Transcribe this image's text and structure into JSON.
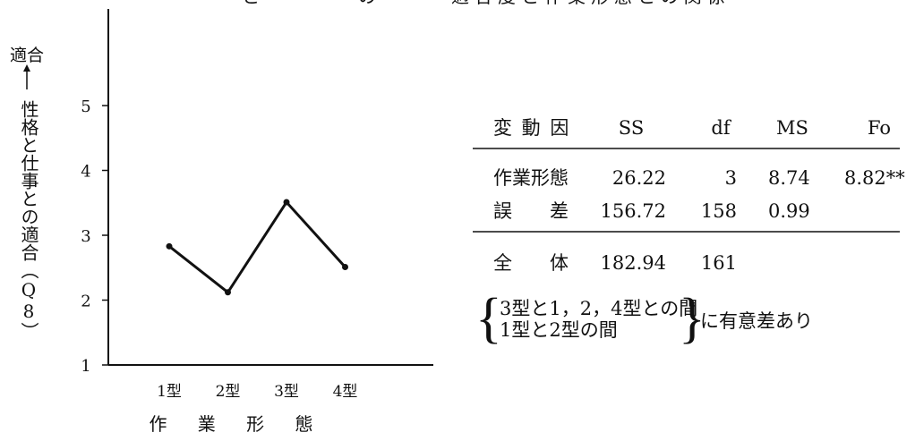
{
  "figure": {
    "title_cropped": "と　　　　の　　　適合度と作業形態との関係"
  },
  "chart_data": {
    "type": "line",
    "categories": [
      "1型",
      "2型",
      "3型",
      "4型"
    ],
    "values": [
      2.83,
      2.12,
      3.51,
      2.51
    ],
    "xlabel": "作 業 形 態",
    "ylabel": "性格と仕事との適合（Q8）",
    "ylabel_top": "適合",
    "ylim": [
      1,
      6
    ],
    "yticks": [
      1,
      2,
      3,
      4,
      5
    ],
    "grid": false,
    "color": "#111111"
  },
  "anova_table": {
    "headers": [
      "変 動 因",
      "SS",
      "df",
      "MS",
      "Fo"
    ],
    "rows": [
      [
        "作業形態",
        "26.22",
        "3",
        "8.74",
        "8.82**"
      ],
      [
        "誤　　差",
        "156.72",
        "158",
        "0.99",
        ""
      ]
    ],
    "total": [
      "全　　体",
      "182.94",
      "161"
    ],
    "note": {
      "lines": [
        "3型と1，2，4型との間",
        "1型と2型の間"
      ],
      "suffix": "に有意差あり"
    }
  }
}
